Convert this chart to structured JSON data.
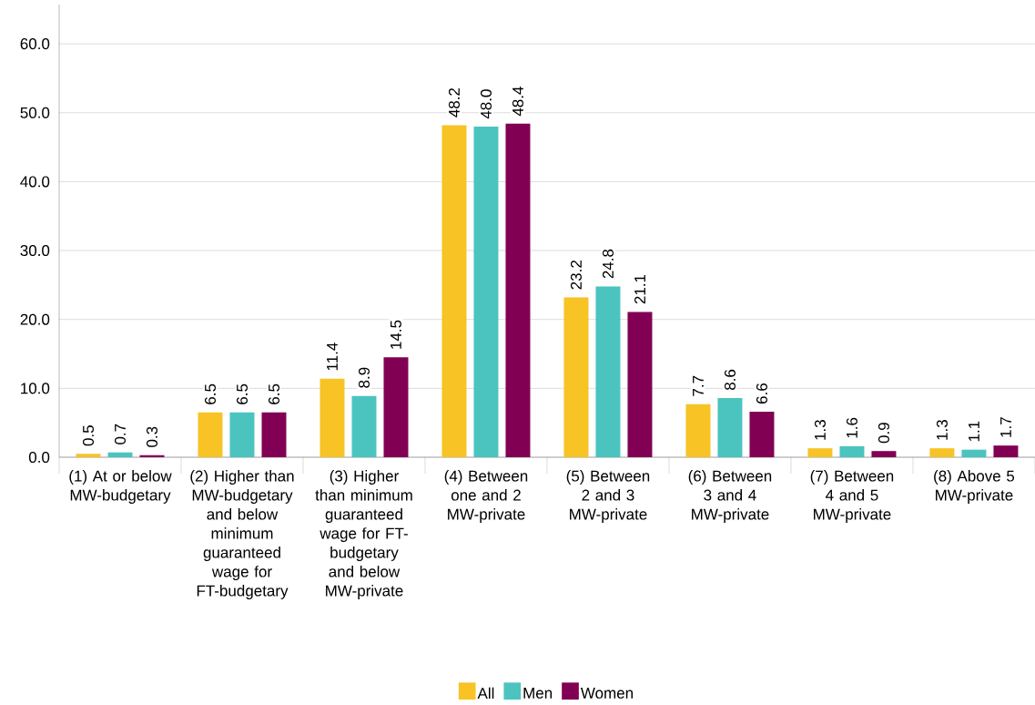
{
  "chart_data": {
    "type": "bar",
    "categories": [
      "(1) At or below MW-budgetary",
      "(2) Higher than MW-budgetary and below minimum guaranteed wage for FT-budgetary",
      "(3) Higher than minimum guaranteed wage for FT-budgetary and below MW-private",
      "(4) Between one and 2 MW-private",
      "(5) Between 2 and 3 MW-private",
      "(6) Between 3 and 4 MW-private",
      "(7) Between 4 and 5 MW-private",
      "(8) Above 5 MW-private"
    ],
    "series": [
      {
        "name": "All",
        "color": "#f7c325",
        "values": [
          0.5,
          6.5,
          11.4,
          48.2,
          23.2,
          7.7,
          1.3,
          1.3
        ],
        "value_labels": [
          "0.5",
          "6.5",
          "11.4",
          "48.2",
          "23.2",
          "7.7",
          "1.3",
          "1.3"
        ]
      },
      {
        "name": "Men",
        "color": "#4bc4c0",
        "values": [
          0.7,
          6.5,
          8.9,
          48.0,
          24.8,
          8.6,
          1.6,
          1.1
        ],
        "value_labels": [
          "0.7",
          "6.5",
          "8.9",
          "48.0",
          "24.8",
          "8.6",
          "1.6",
          "1.1"
        ]
      },
      {
        "name": "Women",
        "color": "#820053",
        "values": [
          0.3,
          6.5,
          14.5,
          48.4,
          21.1,
          6.6,
          0.9,
          1.7
        ],
        "value_labels": [
          "0.3",
          "6.5",
          "14.5",
          "48.4",
          "21.1",
          "6.6",
          "0.9",
          "1.7"
        ]
      }
    ],
    "ylim": [
      0,
      65.7
    ],
    "yticks": [
      {
        "value": 0,
        "label": "0.0"
      },
      {
        "value": 10,
        "label": "10.0"
      },
      {
        "value": 20,
        "label": "20.0"
      },
      {
        "value": 30,
        "label": "30.0"
      },
      {
        "value": 40,
        "label": "40.0"
      },
      {
        "value": 50,
        "label": "50.0"
      },
      {
        "value": 60,
        "label": "60.0"
      }
    ],
    "grid": "y",
    "legend": "bottom"
  }
}
